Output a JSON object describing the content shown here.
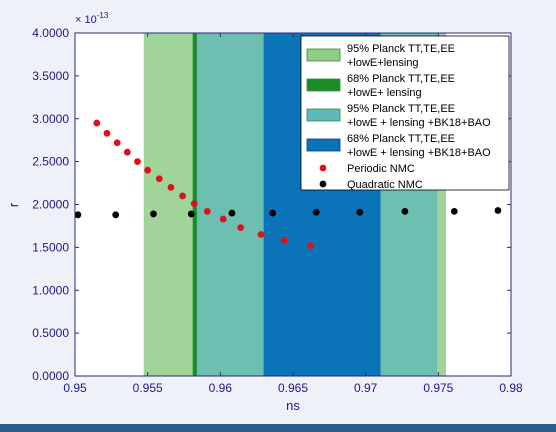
{
  "chart_data": {
    "type": "scatter",
    "title": "",
    "xlabel": "ns",
    "ylabel": "r",
    "xlim": [
      0.95,
      0.98
    ],
    "ylim": [
      0,
      4
    ],
    "exponent_label": "× 10",
    "exponent_power": "-13",
    "xticks": [
      "0.95",
      "0.955",
      "0.96",
      "0.965",
      "0.97",
      "0.975",
      "0.98"
    ],
    "yticks": [
      "0.0000",
      "0.5000",
      "1.0000",
      "1.5000",
      "2.0000",
      "2.5000",
      "3.0000",
      "3.5000",
      "4.0000"
    ],
    "grid": false,
    "legend_position": "top-right",
    "bands": [
      {
        "name": "95% Planck TT,TE,EE +lowE+lensing",
        "legend_lines": [
          "95% Planck TT,TE,EE",
          "+lowE+lensing"
        ],
        "x0": 0.95475,
        "x1": 0.9755,
        "color": "#8fcc86",
        "opacity": 0.85
      },
      {
        "name": "68% Planck TT,TE,EE +lowE+ lensing",
        "legend_lines": [
          "68% Planck TT,TE,EE",
          "+lowE+ lensing"
        ],
        "x0": 0.9581,
        "x1": 0.9584,
        "color": "#1a8a2a",
        "opacity": 1.0
      },
      {
        "name": "95% Planck TT,TE,EE +lowE + lensing +BK18+BAO",
        "legend_lines": [
          "95% Planck TT,TE,EE",
          "+lowE + lensing +BK18+BAO"
        ],
        "x0": 0.9584,
        "x1": 0.9749,
        "color": "#5fb8b8",
        "opacity": 0.78
      },
      {
        "name": "68% Planck TT,TE,EE +lowE + lensing +BK18+BAO",
        "legend_lines": [
          "68% Planck TT,TE,EE",
          "+lowE + lensing +BK18+BAO"
        ],
        "x0": 0.963,
        "x1": 0.971,
        "color": "#0b73b8",
        "opacity": 1.0
      }
    ],
    "series": [
      {
        "name": "Periodic NMC",
        "color": "#e0101a",
        "points": [
          [
            0.9515,
            2.95
          ],
          [
            0.9522,
            2.83
          ],
          [
            0.9529,
            2.72
          ],
          [
            0.9536,
            2.61
          ],
          [
            0.9543,
            2.5
          ],
          [
            0.955,
            2.4
          ],
          [
            0.9558,
            2.3
          ],
          [
            0.9566,
            2.2
          ],
          [
            0.9574,
            2.1
          ],
          [
            0.9582,
            2.01
          ],
          [
            0.9591,
            1.92
          ],
          [
            0.9602,
            1.83
          ],
          [
            0.9614,
            1.73
          ],
          [
            0.9628,
            1.65
          ],
          [
            0.9644,
            1.58
          ],
          [
            0.9662,
            1.52
          ]
        ]
      },
      {
        "name": "Quadratic NMC",
        "color": "#000000",
        "points": [
          [
            0.9502,
            1.88
          ],
          [
            0.9528,
            1.88
          ],
          [
            0.9554,
            1.89
          ],
          [
            0.958,
            1.89
          ],
          [
            0.9608,
            1.9
          ],
          [
            0.9636,
            1.9
          ],
          [
            0.9666,
            1.91
          ],
          [
            0.9696,
            1.91
          ],
          [
            0.9727,
            1.92
          ],
          [
            0.9761,
            1.92
          ],
          [
            0.9791,
            1.93
          ]
        ]
      }
    ]
  }
}
